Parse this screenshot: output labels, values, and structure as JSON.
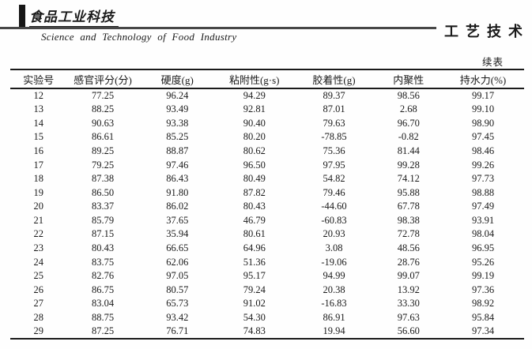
{
  "masthead": {
    "journal_title_cn": "食品工业科技",
    "journal_title_en": "Science  and  Technology  of  Food  Industry",
    "section_label": "工艺技术"
  },
  "table": {
    "continued_label": "续表",
    "headers": [
      "实验号",
      "感官评分(分)",
      "硬度(g)",
      "粘附性(g·s)",
      "胶着性(g)",
      "内聚性",
      "持水力(%)"
    ],
    "rows": [
      [
        "12",
        "77.25",
        "96.24",
        "94.29",
        "89.37",
        "98.56",
        "99.17"
      ],
      [
        "13",
        "88.25",
        "93.49",
        "92.81",
        "87.01",
        "2.68",
        "99.10"
      ],
      [
        "14",
        "90.63",
        "93.38",
        "90.40",
        "79.63",
        "96.70",
        "98.90"
      ],
      [
        "15",
        "86.61",
        "85.25",
        "80.20",
        "-78.85",
        "-0.82",
        "97.45"
      ],
      [
        "16",
        "89.25",
        "88.87",
        "80.62",
        "75.36",
        "81.44",
        "98.46"
      ],
      [
        "17",
        "79.25",
        "97.46",
        "96.50",
        "97.95",
        "99.28",
        "99.26"
      ],
      [
        "18",
        "87.38",
        "86.43",
        "80.49",
        "54.82",
        "74.12",
        "97.73"
      ],
      [
        "19",
        "86.50",
        "91.80",
        "87.82",
        "79.46",
        "95.88",
        "98.88"
      ],
      [
        "20",
        "83.37",
        "86.02",
        "80.43",
        "-44.60",
        "67.78",
        "97.49"
      ],
      [
        "21",
        "85.79",
        "37.65",
        "46.79",
        "-60.83",
        "98.38",
        "93.91"
      ],
      [
        "22",
        "87.15",
        "35.94",
        "80.61",
        "20.93",
        "72.78",
        "98.04"
      ],
      [
        "23",
        "80.43",
        "66.65",
        "64.96",
        "3.08",
        "48.56",
        "96.95"
      ],
      [
        "24",
        "83.75",
        "62.06",
        "51.36",
        "-19.06",
        "28.76",
        "95.26"
      ],
      [
        "25",
        "82.76",
        "97.05",
        "95.17",
        "94.99",
        "99.07",
        "99.19"
      ],
      [
        "26",
        "86.75",
        "80.57",
        "79.24",
        "20.38",
        "13.92",
        "97.36"
      ],
      [
        "27",
        "83.04",
        "65.73",
        "91.02",
        "-16.83",
        "33.30",
        "98.92"
      ],
      [
        "28",
        "88.75",
        "93.42",
        "54.30",
        "86.91",
        "97.63",
        "95.84"
      ],
      [
        "29",
        "87.25",
        "76.71",
        "74.83",
        "19.94",
        "56.60",
        "97.34"
      ]
    ]
  },
  "colors": {
    "ink": "#1a1a1a",
    "rule": "#474747"
  }
}
